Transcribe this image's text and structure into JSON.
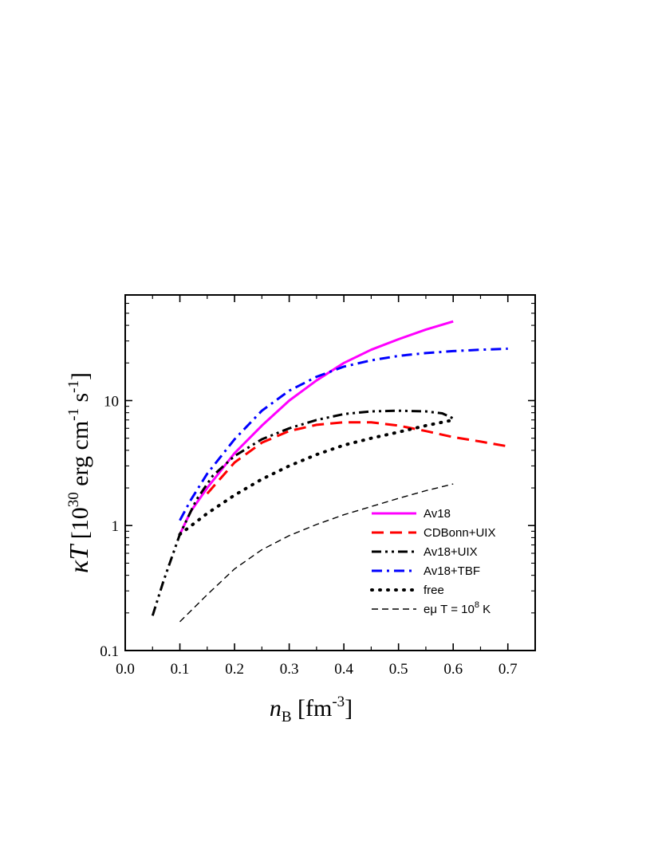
{
  "chart_data": {
    "type": "line",
    "xlabel": {
      "main": "n",
      "sub": "B",
      "unit_pre": " [fm",
      "unit_sup": "-3",
      "unit_post": "]"
    },
    "ylabel": {
      "main": "κT",
      "unit_parts": [
        {
          "t": "  [10",
          "sup": false
        },
        {
          "t": "30",
          "sup": true
        },
        {
          "t": " erg cm",
          "sup": false
        },
        {
          "t": "-1",
          "sup": true
        },
        {
          "t": " s",
          "sup": false
        },
        {
          "t": "-1",
          "sup": true
        },
        {
          "t": "]",
          "sup": false
        }
      ]
    },
    "xlim": [
      0.0,
      0.75
    ],
    "ylim": [
      0.1,
      70
    ],
    "yscale": "log",
    "xticks": [
      0.0,
      0.1,
      0.2,
      0.3,
      0.4,
      0.5,
      0.6,
      0.7
    ],
    "xtick_labels": [
      "0.0",
      "0.1",
      "0.2",
      "0.3",
      "0.4",
      "0.5",
      "0.6",
      "0.7"
    ],
    "yticks": [
      0.1,
      1,
      10
    ],
    "ytick_labels": [
      "0.1",
      "1",
      "10"
    ],
    "grid": false,
    "legend_position": "bottom-right",
    "series": [
      {
        "name": "Av18",
        "color": "#ff00ff",
        "dash": "solid",
        "x": [
          0.1,
          0.12,
          0.15,
          0.2,
          0.25,
          0.3,
          0.35,
          0.4,
          0.45,
          0.5,
          0.55,
          0.6
        ],
        "y": [
          0.85,
          1.3,
          2.0,
          3.8,
          6.3,
          10.0,
          14.5,
          20.0,
          25.5,
          31.0,
          37.0,
          43.0
        ]
      },
      {
        "name": "CDBonn+UIX",
        "color": "#ff0000",
        "dash": "long-dash",
        "x": [
          0.15,
          0.2,
          0.25,
          0.3,
          0.35,
          0.4,
          0.45,
          0.5,
          0.55,
          0.6,
          0.65,
          0.7
        ],
        "y": [
          1.8,
          3.2,
          4.6,
          5.7,
          6.4,
          6.7,
          6.7,
          6.3,
          5.7,
          5.1,
          4.7,
          4.3
        ]
      },
      {
        "name": "Av18+UIX",
        "color": "#000000",
        "dash": "dash-dot-dot",
        "x": [
          0.05,
          0.07,
          0.1,
          0.13,
          0.16,
          0.2,
          0.25,
          0.3,
          0.35,
          0.4,
          0.45,
          0.5,
          0.55,
          0.58,
          0.6
        ],
        "y": [
          0.19,
          0.36,
          0.85,
          1.6,
          2.5,
          3.6,
          4.9,
          6.0,
          7.0,
          7.8,
          8.2,
          8.3,
          8.2,
          7.9,
          7.2
        ]
      },
      {
        "name": "Av18+TBF",
        "color": "#0000ff",
        "dash": "dash-dot",
        "x": [
          0.1,
          0.12,
          0.15,
          0.2,
          0.25,
          0.3,
          0.35,
          0.4,
          0.45,
          0.5,
          0.55,
          0.6,
          0.65,
          0.7
        ],
        "y": [
          1.1,
          1.6,
          2.6,
          4.9,
          8.3,
          12.0,
          15.5,
          18.7,
          21.0,
          22.8,
          24.0,
          24.9,
          25.5,
          26.0
        ]
      },
      {
        "name": "free",
        "color": "#000000",
        "dash": "dotted",
        "x": [
          0.1,
          0.15,
          0.2,
          0.25,
          0.3,
          0.35,
          0.4,
          0.45,
          0.5,
          0.55,
          0.6
        ],
        "y": [
          0.85,
          1.25,
          1.75,
          2.35,
          3.0,
          3.7,
          4.4,
          5.0,
          5.6,
          6.3,
          7.0
        ]
      },
      {
        "name": "eμ T = 10⁸ K",
        "color": "#000000",
        "dash": "short-dash",
        "x": [
          0.1,
          0.15,
          0.2,
          0.25,
          0.3,
          0.35,
          0.4,
          0.45,
          0.5,
          0.55,
          0.6
        ],
        "y": [
          0.17,
          0.28,
          0.45,
          0.64,
          0.83,
          1.02,
          1.22,
          1.42,
          1.65,
          1.9,
          2.15
        ]
      }
    ],
    "legend_labels": [
      {
        "parts": [
          {
            "t": "Av18",
            "sup": false
          }
        ]
      },
      {
        "parts": [
          {
            "t": "CDBonn+UIX",
            "sup": false
          }
        ]
      },
      {
        "parts": [
          {
            "t": "Av18+UIX",
            "sup": false
          }
        ]
      },
      {
        "parts": [
          {
            "t": "Av18+TBF",
            "sup": false
          }
        ]
      },
      {
        "parts": [
          {
            "t": "free",
            "sup": false
          }
        ]
      },
      {
        "parts": [
          {
            "t": "eμ T = 10",
            "sup": false
          },
          {
            "t": "8",
            "sup": true
          },
          {
            "t": " K",
            "sup": false
          }
        ]
      }
    ]
  }
}
